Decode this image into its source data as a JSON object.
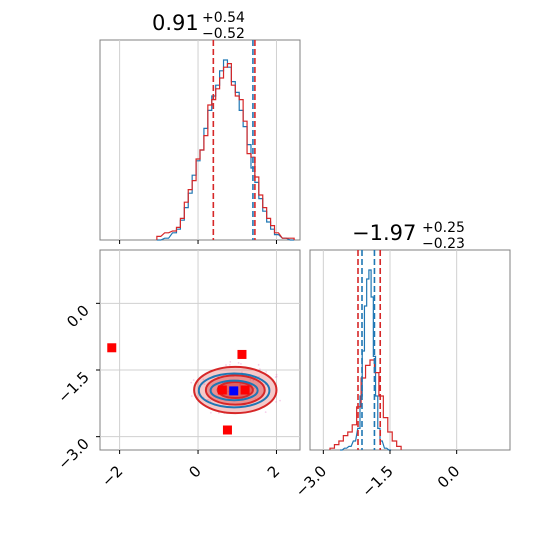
{
  "chart_data": [
    {
      "type": "histogram",
      "panel": "marginal-param-1",
      "title_value": "0.91",
      "title_plus": "+0.54",
      "title_minus": "−0.52",
      "xlim": [
        -2.5,
        2.6
      ],
      "grid": true,
      "series": [
        {
          "color": "#1f77b4",
          "bin_centers": [
            -1.0,
            -0.8,
            -0.6,
            -0.5,
            -0.4,
            -0.3,
            -0.2,
            -0.1,
            0.0,
            0.1,
            0.2,
            0.3,
            0.4,
            0.5,
            0.6,
            0.7,
            0.8,
            0.9,
            1.0,
            1.1,
            1.2,
            1.3,
            1.4,
            1.5,
            1.6,
            1.7,
            1.8,
            1.9,
            2.0,
            2.2,
            2.4
          ],
          "heights": [
            0,
            0.01,
            0.04,
            0.06,
            0.11,
            0.18,
            0.26,
            0.36,
            0.44,
            0.5,
            0.62,
            0.72,
            0.8,
            0.86,
            0.94,
            1.0,
            0.96,
            0.88,
            0.82,
            0.72,
            0.63,
            0.53,
            0.4,
            0.32,
            0.23,
            0.16,
            0.1,
            0.06,
            0.03,
            0.01,
            0
          ]
        },
        {
          "color": "#d62728",
          "bin_centers": [
            -1.0,
            -0.8,
            -0.6,
            -0.5,
            -0.4,
            -0.3,
            -0.2,
            -0.1,
            0.0,
            0.1,
            0.2,
            0.3,
            0.4,
            0.5,
            0.6,
            0.7,
            0.8,
            0.9,
            1.0,
            1.1,
            1.2,
            1.3,
            1.4,
            1.5,
            1.6,
            1.7,
            1.8,
            1.9,
            2.0,
            2.2,
            2.4
          ],
          "heights": [
            0.02,
            0.04,
            0.05,
            0.07,
            0.12,
            0.21,
            0.28,
            0.33,
            0.45,
            0.5,
            0.58,
            0.75,
            0.78,
            0.84,
            0.9,
            0.96,
            0.98,
            0.86,
            0.8,
            0.78,
            0.66,
            0.48,
            0.46,
            0.35,
            0.25,
            0.18,
            0.12,
            0.08,
            0.04,
            0.01,
            0.01
          ]
        }
      ],
      "quantile_lines": [
        {
          "color": "#d62728",
          "x": 0.39
        },
        {
          "color": "#d62728",
          "x": 1.45
        },
        {
          "color": "#1f77b4",
          "x": 1.4
        }
      ]
    },
    {
      "type": "scatter",
      "panel": "joint",
      "xlim": [
        -2.5,
        2.6
      ],
      "ylim": [
        -3.3,
        1.2
      ],
      "x_ticks": [
        "−2",
        "0",
        "2"
      ],
      "x_tick_values": [
        -2,
        0,
        2
      ],
      "y_ticks": [
        "0.0",
        "−1.5",
        "−3.0"
      ],
      "y_tick_values": [
        0.0,
        -1.5,
        -3.0
      ],
      "grid": true,
      "red_markers": [
        {
          "x": -2.2,
          "y": -1.0
        },
        {
          "x": 1.12,
          "y": -1.15
        },
        {
          "x": 0.75,
          "y": -2.85
        },
        {
          "x": 0.62,
          "y": -1.95
        },
        {
          "x": 1.2,
          "y": -1.95
        }
      ],
      "blue_markers": [
        {
          "x": 0.91,
          "y": -1.97
        }
      ],
      "contours": [
        {
          "color": "#d62728",
          "cx": 0.95,
          "cy": -1.95,
          "rx": 1.05,
          "ry": 0.52,
          "fill_opacity": 0.25
        },
        {
          "color": "#d62728",
          "cx": 0.95,
          "cy": -1.95,
          "rx": 0.75,
          "ry": 0.33,
          "fill_opacity": 0.35
        },
        {
          "color": "#d62728",
          "cx": 0.95,
          "cy": -1.95,
          "rx": 0.45,
          "ry": 0.18,
          "fill_opacity": 0.45
        },
        {
          "color": "#1f77b4",
          "cx": 0.92,
          "cy": -1.96,
          "rx": 0.9,
          "ry": 0.38,
          "fill_opacity": 0.0
        },
        {
          "color": "#1f77b4",
          "cx": 0.92,
          "cy": -1.96,
          "rx": 0.6,
          "ry": 0.22,
          "fill_opacity": 0.0
        }
      ]
    },
    {
      "type": "histogram",
      "panel": "marginal-param-2",
      "title_value": "−1.97",
      "title_plus": "+0.25",
      "title_minus": "−0.23",
      "xlim": [
        -3.3,
        1.2
      ],
      "x_ticks": [
        "−3.0",
        "−1.5",
        "0.0"
      ],
      "x_tick_values": [
        -3.0,
        -1.5,
        0.0
      ],
      "grid": true,
      "series": [
        {
          "color": "#1f77b4",
          "bin_centers": [
            -2.6,
            -2.5,
            -2.4,
            -2.3,
            -2.2,
            -2.15,
            -2.1,
            -2.05,
            -2.0,
            -1.95,
            -1.9,
            -1.85,
            -1.8,
            -1.75,
            -1.7,
            -1.6,
            -1.5
          ],
          "heights": [
            0,
            0.01,
            0.02,
            0.05,
            0.12,
            0.3,
            0.55,
            0.8,
            0.95,
            1.0,
            0.85,
            0.52,
            0.3,
            0.12,
            0.05,
            0.01,
            0
          ]
        },
        {
          "color": "#d62728",
          "bin_centers": [
            -2.8,
            -2.7,
            -2.6,
            -2.5,
            -2.4,
            -2.3,
            -2.2,
            -2.1,
            -2.0,
            -1.9,
            -1.8,
            -1.7,
            -1.6,
            -1.5,
            -1.4,
            -1.3
          ],
          "heights": [
            0.01,
            0.03,
            0.05,
            0.08,
            0.1,
            0.14,
            0.24,
            0.4,
            0.47,
            0.5,
            0.43,
            0.3,
            0.18,
            0.1,
            0.05,
            0.02
          ]
        }
      ],
      "quantile_lines": [
        {
          "color": "#d62728",
          "x": -2.22
        },
        {
          "color": "#d62728",
          "x": -1.72
        },
        {
          "color": "#1f77b4",
          "x": -2.13
        },
        {
          "color": "#1f77b4",
          "x": -1.85
        }
      ]
    }
  ]
}
